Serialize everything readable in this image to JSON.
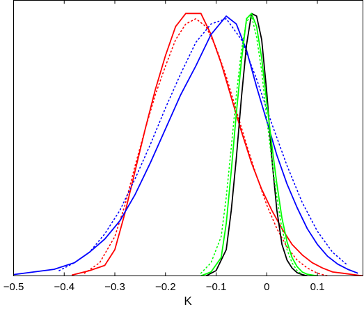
{
  "chart_data": {
    "type": "line",
    "title": "",
    "xlabel": "K",
    "ylabel": "",
    "xlim": [
      -0.5,
      0.19
    ],
    "ylim": [
      0,
      1.05
    ],
    "x_ticks": [
      -0.5,
      -0.4,
      -0.3,
      -0.2,
      -0.1,
      0,
      0.1
    ],
    "x_tick_labels": [
      "−0.5",
      "−0.4",
      "−0.3",
      "−0.2",
      "−0.1",
      "0",
      "0.1"
    ],
    "y_ticks": [],
    "grid": false,
    "legend": "none",
    "series": [
      {
        "color": "#ff0000",
        "style": "solid",
        "x": [
          -0.385,
          -0.35,
          -0.32,
          -0.3,
          -0.28,
          -0.26,
          -0.24,
          -0.22,
          -0.2,
          -0.18,
          -0.16,
          -0.13,
          -0.11,
          -0.09,
          -0.07,
          -0.05,
          -0.03,
          -0.01,
          0.01,
          0.03,
          0.05,
          0.07,
          0.09,
          0.11,
          0.13,
          0.15,
          0.17,
          0.19
        ],
        "y": [
          0.003,
          0.02,
          0.04,
          0.1,
          0.24,
          0.4,
          0.56,
          0.71,
          0.84,
          0.95,
          1.0,
          1.0,
          0.92,
          0.81,
          0.68,
          0.55,
          0.43,
          0.33,
          0.25,
          0.18,
          0.12,
          0.08,
          0.05,
          0.03,
          0.015,
          0.01,
          0.005,
          0.0
        ]
      },
      {
        "color": "#ff0000",
        "style": "dotted",
        "x": [
          -0.36,
          -0.33,
          -0.3,
          -0.28,
          -0.26,
          -0.24,
          -0.22,
          -0.2,
          -0.18,
          -0.16,
          -0.14,
          -0.12,
          -0.1,
          -0.08,
          -0.06,
          -0.04,
          -0.02,
          0.0,
          0.02,
          0.04,
          0.06,
          0.08,
          0.1,
          0.12
        ],
        "y": [
          0.01,
          0.05,
          0.15,
          0.27,
          0.42,
          0.56,
          0.69,
          0.8,
          0.9,
          0.96,
          0.98,
          0.95,
          0.87,
          0.76,
          0.63,
          0.5,
          0.38,
          0.27,
          0.18,
          0.11,
          0.06,
          0.03,
          0.01,
          0.0
        ]
      },
      {
        "color": "#0000ff",
        "style": "solid",
        "x": [
          -0.5,
          -0.46,
          -0.42,
          -0.38,
          -0.35,
          -0.32,
          -0.29,
          -0.26,
          -0.23,
          -0.2,
          -0.17,
          -0.14,
          -0.11,
          -0.08,
          -0.06,
          -0.04,
          -0.02,
          0.0,
          0.02,
          0.04,
          0.06,
          0.08,
          0.1,
          0.12,
          0.14,
          0.16,
          0.18
        ],
        "y": [
          0.005,
          0.015,
          0.025,
          0.05,
          0.09,
          0.14,
          0.21,
          0.31,
          0.43,
          0.56,
          0.69,
          0.8,
          0.92,
          0.99,
          0.96,
          0.86,
          0.72,
          0.59,
          0.46,
          0.35,
          0.26,
          0.18,
          0.12,
          0.075,
          0.045,
          0.025,
          0.01
        ]
      },
      {
        "color": "#0000ff",
        "style": "dotted",
        "x": [
          -0.41,
          -0.38,
          -0.35,
          -0.32,
          -0.29,
          -0.26,
          -0.23,
          -0.2,
          -0.17,
          -0.14,
          -0.11,
          -0.08,
          -0.05,
          -0.02,
          0.01,
          0.04,
          0.07,
          0.1,
          0.13,
          0.16
        ],
        "y": [
          0.02,
          0.05,
          0.09,
          0.16,
          0.25,
          0.37,
          0.5,
          0.64,
          0.77,
          0.89,
          0.96,
          0.98,
          0.9,
          0.75,
          0.58,
          0.42,
          0.28,
          0.17,
          0.09,
          0.04
        ]
      },
      {
        "color": "#000000",
        "style": "solid",
        "x": [
          -0.12,
          -0.1,
          -0.08,
          -0.07,
          -0.06,
          -0.05,
          -0.04,
          -0.03,
          -0.02,
          -0.01,
          0.0,
          0.01,
          0.02,
          0.03,
          0.04,
          0.05,
          0.06,
          0.07,
          0.08
        ],
        "y": [
          0.0,
          0.02,
          0.1,
          0.25,
          0.45,
          0.68,
          0.88,
          1.0,
          0.99,
          0.9,
          0.7,
          0.45,
          0.25,
          0.12,
          0.06,
          0.03,
          0.012,
          0.005,
          0.0
        ]
      },
      {
        "color": "#00ff00",
        "style": "solid",
        "x": [
          -0.13,
          -0.11,
          -0.09,
          -0.08,
          -0.07,
          -0.06,
          -0.05,
          -0.04,
          -0.03,
          -0.02,
          -0.01,
          0.0,
          0.01,
          0.02,
          0.03,
          0.04,
          0.05,
          0.06,
          0.07,
          0.08,
          0.1
        ],
        "y": [
          0.0,
          0.015,
          0.07,
          0.2,
          0.4,
          0.62,
          0.82,
          0.98,
          1.0,
          0.95,
          0.83,
          0.66,
          0.5,
          0.35,
          0.22,
          0.13,
          0.07,
          0.035,
          0.015,
          0.006,
          0.0
        ]
      },
      {
        "color": "#00ff00",
        "style": "dotted",
        "x": [
          -0.13,
          -0.11,
          -0.09,
          -0.08,
          -0.07,
          -0.06,
          -0.05,
          -0.04,
          -0.03,
          -0.02,
          -0.01,
          0.0,
          0.01,
          0.02,
          0.03,
          0.04,
          0.05,
          0.06,
          0.07
        ],
        "y": [
          0.01,
          0.05,
          0.15,
          0.3,
          0.49,
          0.69,
          0.86,
          0.97,
          0.99,
          0.91,
          0.78,
          0.6,
          0.44,
          0.3,
          0.18,
          0.1,
          0.05,
          0.02,
          0.005
        ]
      }
    ]
  }
}
